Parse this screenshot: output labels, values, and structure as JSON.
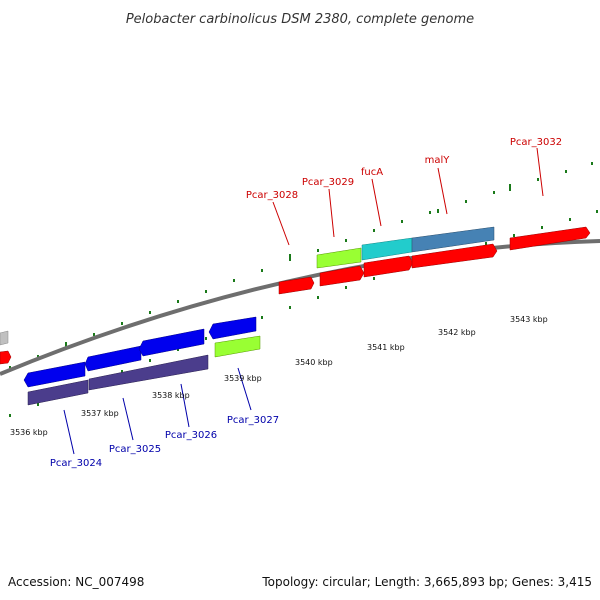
{
  "title": "Pelobacter carbinolicus DSM 2380, complete genome",
  "footer": {
    "accession": "Accession: NC_007498",
    "summary": "Topology: circular; Length: 3,665,893 bp; Genes: 3,415"
  },
  "colors": {
    "backbone": "#808080",
    "tick": "#1a7a1a",
    "forward_label": "#cc0000",
    "reverse_label": "#0000aa"
  },
  "position_ticks": [
    "3536 kbp",
    "3537 kbp",
    "3538 kbp",
    "3539 kbp",
    "3540 kbp",
    "3541 kbp",
    "3542 kbp",
    "3543 kbp"
  ],
  "forward_gene_labels": [
    "Pcar_3028",
    "Pcar_3029",
    "fucA",
    "malY",
    "Pcar_3032"
  ],
  "reverse_gene_labels": [
    "Pcar_3024",
    "Pcar_3025",
    "Pcar_3026",
    "Pcar_3027"
  ]
}
